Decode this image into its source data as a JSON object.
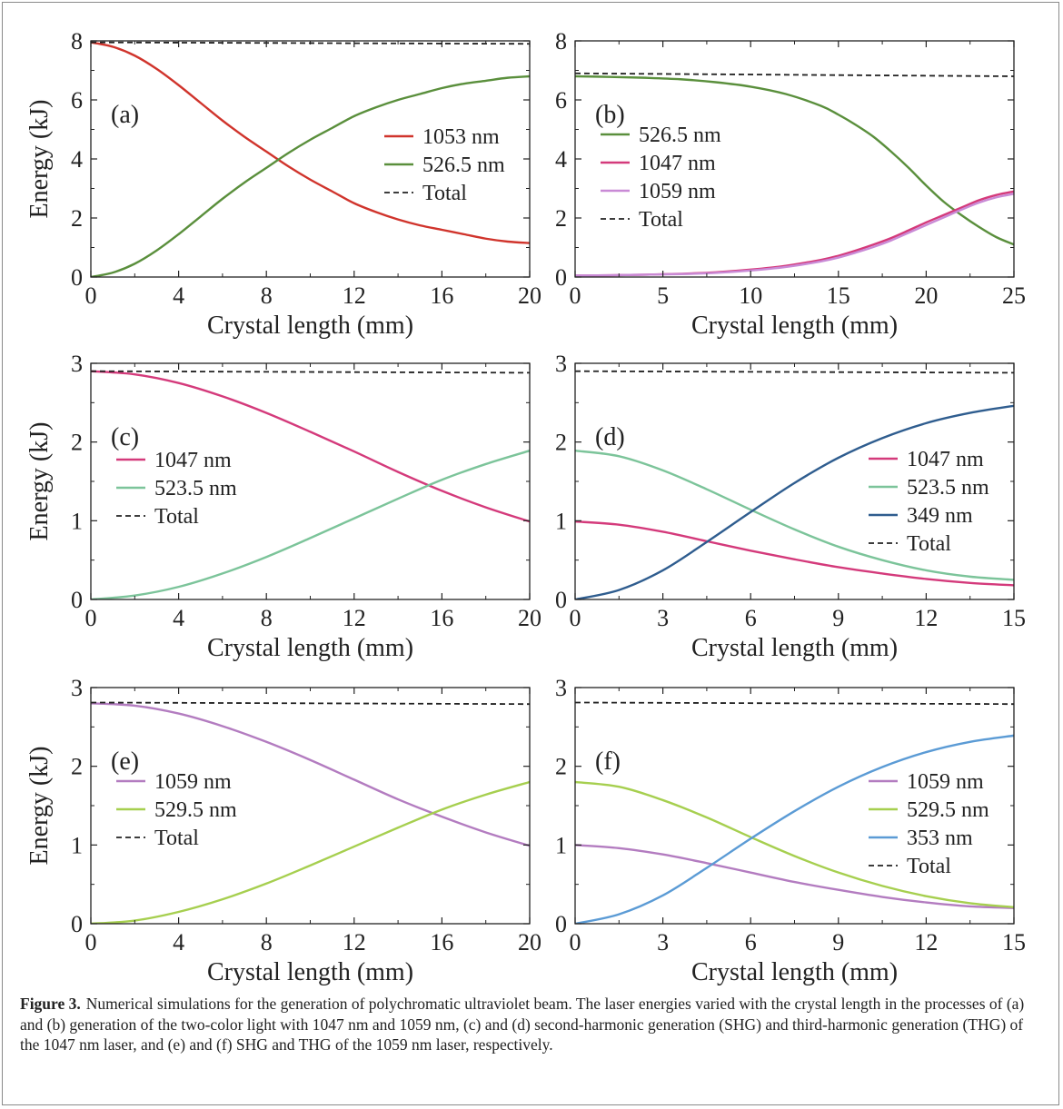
{
  "figure": {
    "caption_label": "Figure 3.",
    "caption_text": "Numerical simulations for the generation of polychromatic ultraviolet beam. The laser energies varied with the crystal length in the processes of (a) and (b) generation of the two-color light with 1047 nm and 1059 nm, (c) and (d) second-harmonic generation (SHG) and third-harmonic generation (THG) of the 1047 nm laser, and (e) and (f) SHG and THG of the 1059 nm laser, respectively."
  },
  "chart_data": [
    {
      "panel": "(a)",
      "type": "line",
      "xlabel": "Crystal length (mm)",
      "ylabel": "Energy (kJ)",
      "xlim": [
        0,
        20
      ],
      "ylim": [
        0,
        8
      ],
      "xticks": [
        0,
        4,
        8,
        12,
        16,
        20
      ],
      "yticks": [
        0,
        2,
        4,
        6,
        8
      ],
      "legend_position": "center-right",
      "series": [
        {
          "name": "1053 nm",
          "color": "#d0342c",
          "style": "solid",
          "x": [
            0,
            1,
            2,
            3,
            4,
            5,
            6,
            7,
            8,
            9,
            10,
            11,
            12,
            13,
            14,
            15,
            16,
            17,
            18,
            19,
            20
          ],
          "y": [
            7.95,
            7.8,
            7.5,
            7.05,
            6.5,
            5.9,
            5.3,
            4.75,
            4.25,
            3.75,
            3.3,
            2.9,
            2.5,
            2.2,
            1.95,
            1.75,
            1.6,
            1.45,
            1.3,
            1.2,
            1.15
          ]
        },
        {
          "name": "526.5 nm",
          "color": "#5a8f3c",
          "style": "solid",
          "x": [
            0,
            1,
            2,
            3,
            4,
            5,
            6,
            7,
            8,
            9,
            10,
            11,
            12,
            13,
            14,
            15,
            16,
            17,
            18,
            19,
            20
          ],
          "y": [
            0,
            0.15,
            0.45,
            0.9,
            1.45,
            2.05,
            2.65,
            3.2,
            3.7,
            4.2,
            4.65,
            5.05,
            5.45,
            5.75,
            6.0,
            6.2,
            6.4,
            6.55,
            6.65,
            6.75,
            6.8
          ]
        },
        {
          "name": "Total",
          "color": "#222222",
          "style": "dashed",
          "x": [
            0,
            20
          ],
          "y": [
            7.95,
            7.9
          ]
        }
      ]
    },
    {
      "panel": "(b)",
      "type": "line",
      "xlabel": "Crystal length (mm)",
      "ylabel": "",
      "xlim": [
        0,
        25
      ],
      "ylim": [
        0,
        8
      ],
      "xticks": [
        0,
        5,
        10,
        15,
        20,
        25
      ],
      "yticks": [
        0,
        2,
        4,
        6,
        8
      ],
      "legend_position": "center-left",
      "series": [
        {
          "name": "526.5 nm",
          "color": "#5a8f3c",
          "style": "solid",
          "x": [
            0,
            2,
            4,
            6,
            8,
            10,
            12,
            14,
            15,
            16,
            17,
            18,
            19,
            20,
            21,
            22,
            23,
            24,
            25
          ],
          "y": [
            6.8,
            6.78,
            6.75,
            6.7,
            6.6,
            6.45,
            6.2,
            5.8,
            5.5,
            5.15,
            4.75,
            4.25,
            3.7,
            3.1,
            2.55,
            2.1,
            1.7,
            1.35,
            1.1
          ]
        },
        {
          "name": "1047 nm",
          "color": "#d43a7b",
          "style": "solid",
          "x": [
            0,
            2,
            4,
            6,
            8,
            10,
            12,
            14,
            15,
            16,
            17,
            18,
            19,
            20,
            21,
            22,
            23,
            24,
            25
          ],
          "y": [
            0.05,
            0.06,
            0.08,
            0.11,
            0.16,
            0.25,
            0.38,
            0.58,
            0.72,
            0.9,
            1.1,
            1.32,
            1.58,
            1.85,
            2.1,
            2.35,
            2.6,
            2.78,
            2.9
          ]
        },
        {
          "name": "1059 nm",
          "color": "#c98ad6",
          "style": "solid",
          "x": [
            0,
            2,
            4,
            6,
            8,
            10,
            12,
            14,
            15,
            16,
            17,
            18,
            19,
            20,
            21,
            22,
            23,
            24,
            25
          ],
          "y": [
            0.05,
            0.06,
            0.08,
            0.1,
            0.14,
            0.22,
            0.34,
            0.53,
            0.66,
            0.83,
            1.02,
            1.24,
            1.5,
            1.76,
            2.02,
            2.28,
            2.52,
            2.7,
            2.82
          ]
        },
        {
          "name": "Total",
          "color": "#222222",
          "style": "dashed",
          "x": [
            0,
            25
          ],
          "y": [
            6.9,
            6.8
          ]
        }
      ]
    },
    {
      "panel": "(c)",
      "type": "line",
      "xlabel": "Crystal length (mm)",
      "ylabel": "Energy (kJ)",
      "xlim": [
        0,
        20
      ],
      "ylim": [
        0,
        3
      ],
      "xticks": [
        0,
        4,
        8,
        12,
        16,
        20
      ],
      "yticks": [
        0,
        1,
        2,
        3
      ],
      "legend_position": "center-left",
      "series": [
        {
          "name": "1047 nm",
          "color": "#d43a7b",
          "style": "solid",
          "x": [
            0,
            2,
            4,
            6,
            8,
            10,
            12,
            14,
            16,
            18,
            20
          ],
          "y": [
            2.9,
            2.86,
            2.75,
            2.58,
            2.37,
            2.13,
            1.88,
            1.62,
            1.38,
            1.17,
            0.99
          ]
        },
        {
          "name": "523.5 nm",
          "color": "#7cc49a",
          "style": "solid",
          "x": [
            0,
            2,
            4,
            6,
            8,
            10,
            12,
            14,
            16,
            18,
            20
          ],
          "y": [
            0,
            0.05,
            0.16,
            0.33,
            0.54,
            0.78,
            1.03,
            1.28,
            1.52,
            1.72,
            1.89
          ]
        },
        {
          "name": "Total",
          "color": "#222222",
          "style": "dashed",
          "x": [
            0,
            20
          ],
          "y": [
            2.9,
            2.88
          ]
        }
      ]
    },
    {
      "panel": "(d)",
      "type": "line",
      "xlabel": "Crystal length (mm)",
      "ylabel": "",
      "xlim": [
        0,
        15
      ],
      "ylim": [
        0,
        3
      ],
      "xticks": [
        0,
        3,
        6,
        9,
        12,
        15
      ],
      "yticks": [
        0,
        1,
        2,
        3
      ],
      "legend_position": "center-right",
      "series": [
        {
          "name": "1047 nm",
          "color": "#d43a7b",
          "style": "solid",
          "x": [
            0,
            1.5,
            3,
            4.5,
            6,
            7.5,
            9,
            10.5,
            12,
            13.5,
            15
          ],
          "y": [
            0.99,
            0.95,
            0.86,
            0.74,
            0.62,
            0.51,
            0.41,
            0.33,
            0.26,
            0.21,
            0.18
          ]
        },
        {
          "name": "523.5 nm",
          "color": "#7cc49a",
          "style": "solid",
          "x": [
            0,
            1.5,
            3,
            4.5,
            6,
            7.5,
            9,
            10.5,
            12,
            13.5,
            15
          ],
          "y": [
            1.89,
            1.82,
            1.64,
            1.4,
            1.14,
            0.89,
            0.67,
            0.5,
            0.37,
            0.29,
            0.25
          ]
        },
        {
          "name": "349 nm",
          "color": "#2f5d8f",
          "style": "solid",
          "x": [
            0,
            1.5,
            3,
            4.5,
            6,
            7.5,
            9,
            10.5,
            12,
            13.5,
            15
          ],
          "y": [
            0,
            0.12,
            0.37,
            0.73,
            1.11,
            1.48,
            1.8,
            2.05,
            2.24,
            2.37,
            2.46
          ]
        },
        {
          "name": "Total",
          "color": "#222222",
          "style": "dashed",
          "x": [
            0,
            15
          ],
          "y": [
            2.9,
            2.88
          ]
        }
      ]
    },
    {
      "panel": "(e)",
      "type": "line",
      "xlabel": "Crystal length (mm)",
      "ylabel": "Energy (kJ)",
      "xlim": [
        0,
        20
      ],
      "ylim": [
        0,
        3
      ],
      "xticks": [
        0,
        4,
        8,
        12,
        16,
        20
      ],
      "yticks": [
        0,
        1,
        2,
        3
      ],
      "legend_position": "center-left",
      "series": [
        {
          "name": "1059 nm",
          "color": "#b37cc0",
          "style": "solid",
          "x": [
            0,
            2,
            4,
            6,
            8,
            10,
            12,
            14,
            16,
            18,
            20
          ],
          "y": [
            2.8,
            2.77,
            2.67,
            2.51,
            2.31,
            2.08,
            1.83,
            1.58,
            1.36,
            1.16,
            0.99
          ]
        },
        {
          "name": "529.5 nm",
          "color": "#a6cf4f",
          "style": "solid",
          "x": [
            0,
            2,
            4,
            6,
            8,
            10,
            12,
            14,
            16,
            18,
            20
          ],
          "y": [
            0,
            0.04,
            0.15,
            0.31,
            0.51,
            0.74,
            0.98,
            1.22,
            1.45,
            1.64,
            1.8
          ]
        },
        {
          "name": "Total",
          "color": "#222222",
          "style": "dashed",
          "x": [
            0,
            20
          ],
          "y": [
            2.81,
            2.79
          ]
        }
      ]
    },
    {
      "panel": "(f)",
      "type": "line",
      "xlabel": "Crystal length (mm)",
      "ylabel": "",
      "xlim": [
        0,
        15
      ],
      "ylim": [
        0,
        3
      ],
      "xticks": [
        0,
        3,
        6,
        9,
        12,
        15
      ],
      "yticks": [
        0,
        1,
        2,
        3
      ],
      "legend_position": "center-right",
      "series": [
        {
          "name": "1059 nm",
          "color": "#b37cc0",
          "style": "solid",
          "x": [
            0,
            1.5,
            3,
            4.5,
            6,
            7.5,
            9,
            10.5,
            12,
            13.5,
            15
          ],
          "y": [
            1.0,
            0.96,
            0.88,
            0.77,
            0.65,
            0.53,
            0.43,
            0.34,
            0.27,
            0.22,
            0.2
          ]
        },
        {
          "name": "529.5 nm",
          "color": "#a6cf4f",
          "style": "solid",
          "x": [
            0,
            1.5,
            3,
            4.5,
            6,
            7.5,
            9,
            10.5,
            12,
            13.5,
            15
          ],
          "y": [
            1.8,
            1.74,
            1.57,
            1.35,
            1.1,
            0.86,
            0.65,
            0.48,
            0.35,
            0.26,
            0.21
          ]
        },
        {
          "name": "353 nm",
          "color": "#5b9bd5",
          "style": "solid",
          "x": [
            0,
            1.5,
            3,
            4.5,
            6,
            7.5,
            9,
            10.5,
            12,
            13.5,
            15
          ],
          "y": [
            0,
            0.12,
            0.36,
            0.71,
            1.08,
            1.43,
            1.74,
            1.99,
            2.18,
            2.31,
            2.39
          ]
        },
        {
          "name": "Total",
          "color": "#222222",
          "style": "dashed",
          "x": [
            0,
            15
          ],
          "y": [
            2.81,
            2.79
          ]
        }
      ]
    }
  ]
}
